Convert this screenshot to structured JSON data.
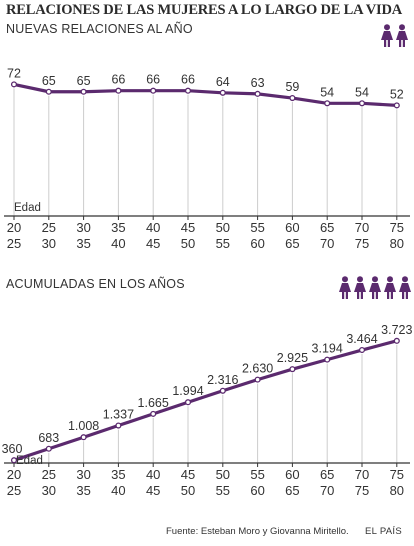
{
  "header": {
    "title": "RELACIONES DE LAS MUJERES A LO LARGO DE LA VIDA",
    "subtitle_top": "NUEVAS RELACIONES AL AÑO",
    "subtitle_bottom": "ACUMULADAS EN LOS AÑOS"
  },
  "icons": {
    "top": [
      "woman-icon",
      "woman-icon"
    ],
    "bottom": [
      "woman-icon",
      "woman-icon",
      "woman-icon",
      "woman-icon",
      "woman-icon"
    ],
    "color": "#5b2a6e"
  },
  "colors": {
    "line": "#5b2a6e",
    "grid": "#cccccc",
    "axis": "#333333",
    "text": "#333333"
  },
  "footer": {
    "source": "Fuente: Esteban Moro y Giovanna Miritello.",
    "brand": "EL PAÍS"
  },
  "chart_data": [
    {
      "type": "line",
      "title": "NUEVAS RELACIONES AL AÑO",
      "xlabel": "Edad",
      "ylabel": "",
      "categories_top": [
        "20",
        "25",
        "30",
        "35",
        "40",
        "45",
        "50",
        "55",
        "60",
        "65",
        "70",
        "75"
      ],
      "categories_bottom": [
        "25",
        "30",
        "35",
        "40",
        "45",
        "50",
        "55",
        "60",
        "65",
        "70",
        "75",
        "80"
      ],
      "value_labels": [
        "72",
        "65",
        "65",
        "66",
        "66",
        "66",
        "64",
        "63",
        "59",
        "54",
        "54",
        "52"
      ],
      "values": [
        72,
        65,
        65,
        66,
        66,
        66,
        64,
        63,
        59,
        54,
        54,
        52
      ],
      "ylim": [
        0,
        80
      ],
      "grid": "vertical"
    },
    {
      "type": "line",
      "title": "ACUMULADAS EN LOS AÑOS",
      "xlabel": "Edad",
      "ylabel": "",
      "categories_top": [
        "20",
        "25",
        "30",
        "35",
        "40",
        "45",
        "50",
        "55",
        "60",
        "65",
        "70",
        "75"
      ],
      "categories_bottom": [
        "25",
        "30",
        "35",
        "40",
        "45",
        "50",
        "55",
        "60",
        "65",
        "70",
        "75",
        "80"
      ],
      "value_labels": [
        "360",
        "683",
        "1.008",
        "1.337",
        "1.665",
        "1.994",
        "2.316",
        "2.630",
        "2.925",
        "3.194",
        "3.464",
        "3.723"
      ],
      "values": [
        360,
        683,
        1008,
        1337,
        1665,
        1994,
        2316,
        2630,
        2925,
        3194,
        3464,
        3723
      ],
      "ylim": [
        0,
        4000
      ],
      "grid": "vertical"
    }
  ]
}
